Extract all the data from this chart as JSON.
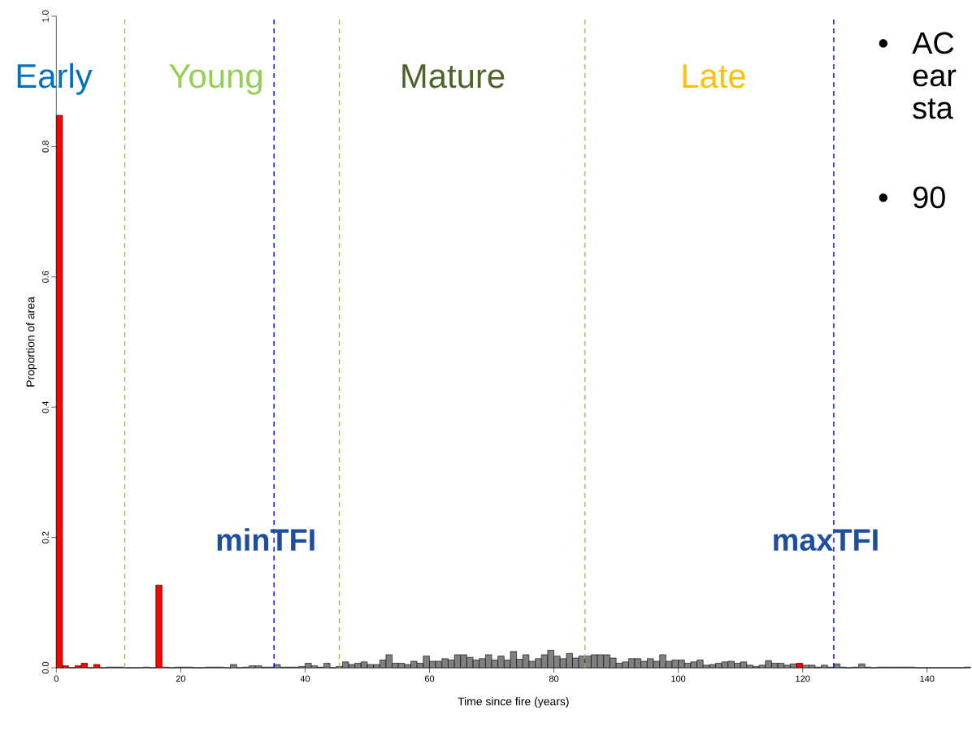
{
  "chart_data": {
    "type": "histogram",
    "xlabel": "Time since fire (years)",
    "ylabel": "Proportion of area",
    "bins": [
      0,
      1,
      2,
      3,
      4,
      5,
      6,
      7,
      8,
      9,
      10,
      11,
      12,
      13,
      14,
      15,
      16,
      17,
      18,
      19,
      20,
      21,
      22,
      23,
      24,
      25,
      26,
      27,
      28,
      29,
      30,
      31,
      32,
      33,
      34,
      35,
      36,
      37,
      38,
      39,
      40,
      41,
      42,
      43,
      44,
      45,
      46,
      47,
      48,
      49,
      50,
      51,
      52,
      53,
      54,
      55,
      56,
      57,
      58,
      59,
      60,
      61,
      62,
      63,
      64,
      65,
      66,
      67,
      68,
      69,
      70,
      71,
      72,
      73,
      74,
      75,
      76,
      77,
      78,
      79,
      80,
      81,
      82,
      83,
      84,
      85,
      86,
      87,
      88,
      89,
      90,
      91,
      92,
      93,
      94,
      95,
      96,
      97,
      98,
      99,
      100,
      101,
      102,
      103,
      104,
      105,
      106,
      107,
      108,
      109,
      110,
      111,
      112,
      113,
      114,
      115,
      116,
      117,
      118,
      119,
      120,
      121,
      122,
      123,
      124,
      125,
      126,
      127,
      128,
      129,
      130,
      131,
      132,
      133,
      134,
      135,
      136,
      137,
      138,
      139,
      140,
      141,
      142,
      143,
      144,
      145,
      146,
      147
    ],
    "values": [
      0.848,
      0.003,
      0,
      0.003,
      0.007,
      0,
      0.005,
      0,
      0.001,
      0.001,
      0.001,
      0,
      0,
      0,
      0.001,
      0,
      0.127,
      0.001,
      0,
      0.001,
      0.001,
      0.001,
      0,
      0,
      0.001,
      0.001,
      0.001,
      0,
      0.005,
      0,
      0.001,
      0.003,
      0.003,
      0.001,
      0.001,
      0.005,
      0.001,
      0.001,
      0.001,
      0.002,
      0.007,
      0.003,
      0.001,
      0.007,
      0,
      0.002,
      0.009,
      0.005,
      0.007,
      0.009,
      0.005,
      0.005,
      0.012,
      0.02,
      0.007,
      0.007,
      0.005,
      0.01,
      0.007,
      0.018,
      0.01,
      0.01,
      0.014,
      0.012,
      0.02,
      0.02,
      0.016,
      0.012,
      0.014,
      0.02,
      0.012,
      0.018,
      0.012,
      0.025,
      0.013,
      0.02,
      0.01,
      0.014,
      0.02,
      0.027,
      0.018,
      0.014,
      0.022,
      0.015,
      0.018,
      0.018,
      0.02,
      0.02,
      0.02,
      0.015,
      0.007,
      0.009,
      0.014,
      0.014,
      0.01,
      0.014,
      0.01,
      0.02,
      0.01,
      0.012,
      0.012,
      0.007,
      0.009,
      0.012,
      0.004,
      0.005,
      0.007,
      0.009,
      0.01,
      0.007,
      0.009,
      0.004,
      0.002,
      0.004,
      0.011,
      0.007,
      0.007,
      0.004,
      0.006,
      0.007,
      0.004,
      0.004,
      0.001,
      0.004,
      0.001,
      0.006,
      0.001,
      0,
      0.001,
      0.006,
      0.001,
      0,
      0.001,
      0.001,
      0.001,
      0.001,
      0.001,
      0.001,
      0,
      0,
      0,
      0,
      0,
      0,
      0,
      0,
      0.001
    ],
    "colors": [
      "#ff0000",
      "#ff0000",
      "#808080",
      "#ff0000",
      "#ff0000",
      "#808080",
      "#ff0000",
      "#808080",
      "#808080",
      "#808080",
      "#808080",
      "#808080",
      "#808080",
      "#808080",
      "#808080",
      "#808080",
      "#ff0000",
      "#808080",
      "#808080",
      "#808080",
      "#808080",
      "#808080",
      "#808080",
      "#808080",
      "#808080",
      "#808080",
      "#808080",
      "#808080",
      "#808080",
      "#808080",
      "#808080",
      "#808080",
      "#808080",
      "#808080",
      "#808080",
      "#808080",
      "#808080",
      "#808080",
      "#808080",
      "#808080",
      "#808080",
      "#808080",
      "#808080",
      "#808080",
      "#808080",
      "#808080",
      "#808080",
      "#808080",
      "#808080",
      "#808080",
      "#808080",
      "#808080",
      "#808080",
      "#808080",
      "#808080",
      "#808080",
      "#808080",
      "#808080",
      "#808080",
      "#808080",
      "#808080",
      "#808080",
      "#808080",
      "#808080",
      "#808080",
      "#808080",
      "#808080",
      "#808080",
      "#808080",
      "#808080",
      "#808080",
      "#808080",
      "#808080",
      "#808080",
      "#808080",
      "#808080",
      "#808080",
      "#808080",
      "#808080",
      "#808080",
      "#808080",
      "#808080",
      "#808080",
      "#808080",
      "#808080",
      "#808080",
      "#808080",
      "#808080",
      "#808080",
      "#808080",
      "#808080",
      "#808080",
      "#808080",
      "#808080",
      "#808080",
      "#808080",
      "#808080",
      "#808080",
      "#808080",
      "#808080",
      "#808080",
      "#808080",
      "#808080",
      "#808080",
      "#808080",
      "#808080",
      "#808080",
      "#808080",
      "#808080",
      "#808080",
      "#808080",
      "#808080",
      "#808080",
      "#808080",
      "#808080",
      "#808080",
      "#808080",
      "#808080",
      "#808080",
      "#ff0000",
      "#808080",
      "#808080",
      "#808080",
      "#808080",
      "#808080",
      "#808080",
      "#808080",
      "#808080",
      "#808080",
      "#808080",
      "#808080",
      "#808080",
      "#808080",
      "#808080",
      "#808080",
      "#808080",
      "#808080",
      "#808080",
      "#808080",
      "#808080",
      "#808080",
      "#808080",
      "#808080",
      "#808080",
      "#808080",
      "#808080",
      "#808080"
    ],
    "xlim": [
      0,
      147
    ],
    "ylim": [
      0,
      1
    ],
    "xticks": [
      0,
      20,
      40,
      60,
      80,
      100,
      120,
      140
    ],
    "yticks": [
      {
        "value": 0,
        "label": "0.0"
      },
      {
        "value": 0.2,
        "label": "0.2"
      },
      {
        "value": 0.4,
        "label": "0.4"
      },
      {
        "value": 0.6,
        "label": "0.6"
      },
      {
        "value": 0.8,
        "label": "0.8"
      },
      {
        "value": 1,
        "label": "1.0"
      }
    ],
    "ref_lines": [
      {
        "axis": "x",
        "value": 11,
        "color": "#9bbb59",
        "line_style": "dashed"
      },
      {
        "axis": "x",
        "value": 35,
        "label": "minTFI",
        "color": "#0000ff",
        "line_style": "dashed"
      },
      {
        "axis": "x",
        "value": 45.5,
        "color": "#9bbb59",
        "line_style": "dashed"
      },
      {
        "axis": "x",
        "value": 85,
        "color": "#9bbb59",
        "line_style": "dashed"
      },
      {
        "axis": "x",
        "value": 125,
        "label": "maxTFI",
        "color": "#0000ff",
        "line_style": "dashed"
      }
    ],
    "annotations": [
      "Early",
      "Young",
      "Mature",
      "Late",
      "•",
      "AC",
      "ear",
      "sta",
      "•",
      "90"
    ]
  }
}
